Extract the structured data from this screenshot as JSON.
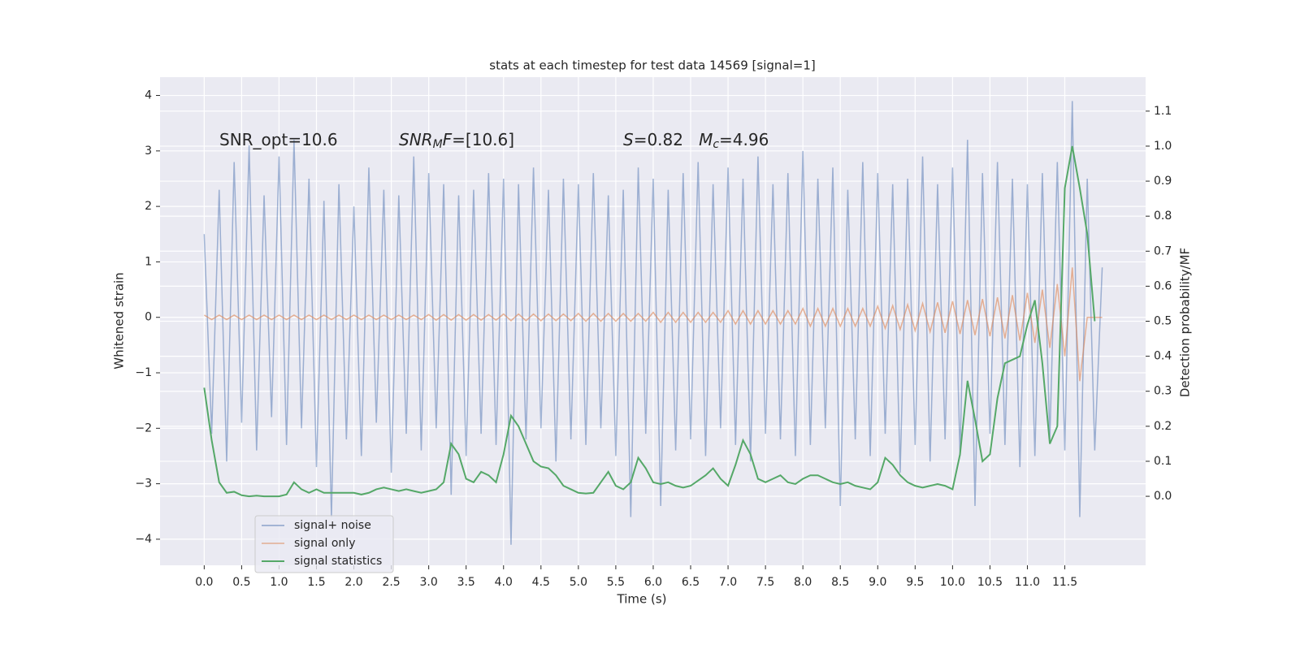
{
  "chart_data": {
    "type": "line",
    "title": "stats at each timestep for test data 14569 [signal=1]",
    "xlabel": "Time (s)",
    "ylabel": "Whitened strain",
    "y2label": "Detection probability/MF",
    "annotations": [
      [
        {
          "text": "SNR_opt=10.6"
        }
      ],
      [
        {
          "text": "SNR",
          "italic": true
        },
        {
          "text": "M",
          "italic": true,
          "sub": true
        },
        {
          "text": "F",
          "italic": true
        },
        {
          "text": "=[10.6]"
        }
      ],
      [
        {
          "text": "S",
          "italic": true
        },
        {
          "text": "=0.82   "
        },
        {
          "text": "M",
          "italic": true
        },
        {
          "text": "c",
          "italic": true,
          "sub": true
        },
        {
          "text": "=4.96"
        }
      ]
    ],
    "x": [
      0,
      0.1,
      0.2,
      0.3,
      0.4,
      0.5,
      0.6,
      0.7,
      0.8,
      0.9,
      1,
      1.1,
      1.2,
      1.3,
      1.4,
      1.5,
      1.6,
      1.7,
      1.8,
      1.9,
      2,
      2.1,
      2.2,
      2.3,
      2.4,
      2.5,
      2.6,
      2.7,
      2.8,
      2.9,
      3,
      3.1,
      3.2,
      3.3,
      3.4,
      3.5,
      3.6,
      3.7,
      3.8,
      3.9,
      4,
      4.1,
      4.2,
      4.3,
      4.4,
      4.5,
      4.6,
      4.7,
      4.8,
      4.9,
      5,
      5.1,
      5.2,
      5.3,
      5.4,
      5.5,
      5.6,
      5.7,
      5.8,
      5.9,
      6,
      6.1,
      6.2,
      6.3,
      6.4,
      6.5,
      6.6,
      6.7,
      6.8,
      6.9,
      7,
      7.1,
      7.2,
      7.3,
      7.4,
      7.5,
      7.6,
      7.7,
      7.8,
      7.9,
      8,
      8.1,
      8.2,
      8.3,
      8.4,
      8.5,
      8.6,
      8.7,
      8.8,
      8.9,
      9,
      9.1,
      9.2,
      9.3,
      9.4,
      9.5,
      9.6,
      9.7,
      9.8,
      9.9,
      10,
      10.1,
      10.2,
      10.3,
      10.4,
      10.5,
      10.6,
      10.7,
      10.8,
      10.9,
      11,
      11.1,
      11.2,
      11.3,
      11.4,
      11.5,
      11.6,
      11.7,
      11.8,
      11.9,
      12
    ],
    "series": [
      {
        "name": "signal+ noise",
        "color": "#4c72b0",
        "values": [
          1.5,
          -2.1,
          2.3,
          -2.6,
          2.8,
          -1.9,
          3.1,
          -2.4,
          2.2,
          -1.8,
          2.9,
          -2.3,
          3.2,
          -2.0,
          2.5,
          -2.7,
          2.1,
          -3.6,
          2.4,
          -2.2,
          2.0,
          -2.5,
          2.7,
          -1.9,
          2.3,
          -2.8,
          2.2,
          -2.1,
          2.9,
          -2.4,
          2.6,
          -2.0,
          2.4,
          -3.2,
          2.2,
          -2.5,
          2.3,
          -2.1,
          2.6,
          -2.3,
          2.5,
          -4.1,
          2.4,
          -2.2,
          2.7,
          -2.0,
          2.3,
          -2.6,
          2.5,
          -2.2,
          2.4,
          -2.3,
          2.6,
          -2.0,
          2.2,
          -2.5,
          2.3,
          -3.6,
          2.7,
          -2.1,
          2.5,
          -3.4,
          2.3,
          -2.4,
          2.6,
          -2.2,
          2.8,
          -2.5,
          2.4,
          -2.0,
          2.7,
          -2.3,
          2.5,
          -2.6,
          2.9,
          -2.1,
          2.4,
          -2.2,
          2.6,
          -2.5,
          3.0,
          -2.3,
          2.5,
          -2.0,
          2.7,
          -3.4,
          2.3,
          -2.2,
          2.8,
          -2.5,
          2.6,
          -2.1,
          2.4,
          -2.8,
          2.5,
          -2.3,
          2.9,
          -2.6,
          2.4,
          -2.2,
          2.7,
          -2.5,
          3.2,
          -3.4,
          2.6,
          -2.1,
          2.8,
          -2.3,
          2.5,
          -2.7,
          2.4,
          -2.5,
          2.6,
          -2.2,
          2.8,
          -2.4,
          3.9,
          -3.6,
          2.5,
          -2.4,
          0.9
        ]
      },
      {
        "name": "signal only",
        "color": "#dd8452",
        "values": [
          0.04,
          -0.04,
          0.04,
          -0.04,
          0.04,
          -0.04,
          0.04,
          -0.04,
          0.04,
          -0.04,
          0.04,
          -0.04,
          0.04,
          -0.04,
          0.04,
          -0.04,
          0.04,
          -0.04,
          0.04,
          -0.04,
          0.04,
          -0.04,
          0.04,
          -0.04,
          0.04,
          -0.04,
          0.04,
          -0.04,
          0.04,
          -0.04,
          0.05,
          -0.05,
          0.05,
          -0.05,
          0.05,
          -0.05,
          0.05,
          -0.05,
          0.05,
          -0.05,
          0.06,
          -0.06,
          0.06,
          -0.06,
          0.06,
          -0.06,
          0.06,
          -0.06,
          0.06,
          -0.06,
          0.07,
          -0.07,
          0.07,
          -0.07,
          0.07,
          -0.07,
          0.07,
          -0.07,
          0.07,
          -0.07,
          0.09,
          -0.09,
          0.09,
          -0.09,
          0.09,
          -0.09,
          0.09,
          -0.09,
          0.09,
          -0.09,
          0.12,
          -0.12,
          0.12,
          -0.12,
          0.12,
          -0.12,
          0.12,
          -0.12,
          0.12,
          -0.12,
          0.16,
          -0.16,
          0.16,
          -0.16,
          0.16,
          -0.16,
          0.16,
          -0.16,
          0.16,
          -0.16,
          0.2,
          -0.2,
          0.21,
          -0.22,
          0.23,
          -0.24,
          0.25,
          -0.26,
          0.27,
          -0.28,
          0.29,
          -0.3,
          0.31,
          -0.32,
          0.33,
          -0.34,
          0.36,
          -0.38,
          0.4,
          -0.42,
          0.44,
          -0.46,
          0.5,
          -0.55,
          0.6,
          -0.7,
          0.9,
          -1.15,
          0,
          0,
          0
        ]
      },
      {
        "name": "signal statistics",
        "color": "#55a868",
        "axis": "y2",
        "values": [
          0.31,
          0.16,
          0.04,
          0.01,
          0.013,
          0.003,
          0.0,
          0.002,
          0.0,
          0.0,
          0.0,
          0.005,
          0.04,
          0.02,
          0.01,
          0.02,
          0.01,
          0.01,
          0.01,
          0.01,
          0.01,
          0.005,
          0.01,
          0.02,
          0.025,
          0.02,
          0.015,
          0.02,
          0.015,
          0.01,
          0.015,
          0.02,
          0.04,
          0.15,
          0.12,
          0.05,
          0.04,
          0.07,
          0.06,
          0.04,
          0.12,
          0.23,
          0.2,
          0.15,
          0.1,
          0.085,
          0.08,
          0.06,
          0.03,
          0.02,
          0.01,
          0.008,
          0.01,
          0.04,
          0.07,
          0.03,
          0.02,
          0.04,
          0.11,
          0.08,
          0.04,
          0.035,
          0.04,
          0.03,
          0.025,
          0.03,
          0.045,
          0.06,
          0.08,
          0.05,
          0.03,
          0.09,
          0.16,
          0.12,
          0.05,
          0.04,
          0.05,
          0.06,
          0.04,
          0.035,
          0.05,
          0.06,
          0.06,
          0.05,
          0.04,
          0.035,
          0.04,
          0.03,
          0.025,
          0.02,
          0.04,
          0.11,
          0.09,
          0.06,
          0.04,
          0.03,
          0.025,
          0.03,
          0.035,
          0.03,
          0.02,
          0.12,
          0.33,
          0.22,
          0.1,
          0.12,
          0.28,
          0.38,
          0.39,
          0.4,
          0.49,
          0.56,
          0.38,
          0.15,
          0.2,
          0.88,
          1.0,
          0.88,
          0.75,
          0.5,
          null
        ]
      }
    ],
    "xlim": [
      -0.59,
      12.58
    ],
    "xticks": [
      {
        "value": 0,
        "label": "0.0"
      },
      0.5,
      {
        "value": 1,
        "label": "1.0"
      },
      1.5,
      {
        "value": 2,
        "label": "2.0"
      },
      2.5,
      {
        "value": 3,
        "label": "3.0"
      },
      3.5,
      {
        "value": 4,
        "label": "4.0"
      },
      4.5,
      {
        "value": 5,
        "label": "5.0"
      },
      5.5,
      {
        "value": 6,
        "label": "6.0"
      },
      6.5,
      {
        "value": 7,
        "label": "7.0"
      },
      7.5,
      {
        "value": 8,
        "label": "8.0"
      },
      8.5,
      {
        "value": 9,
        "label": "9.0"
      },
      9.5,
      {
        "value": 10,
        "label": "10.0"
      },
      10.5,
      {
        "value": 11,
        "label": "11.0"
      },
      11.5
    ],
    "ylim": [
      -4.47,
      4.33
    ],
    "yticks": [
      {
        "value": -4,
        "label": "−4"
      },
      {
        "value": -3,
        "label": "−3"
      },
      {
        "value": -2,
        "label": "−2"
      },
      {
        "value": -1,
        "label": "−1"
      },
      0,
      1,
      2,
      3,
      4
    ],
    "y2lim": [
      -0.197,
      1.197
    ],
    "y2ticks": [
      {
        "value": 0,
        "label": "0.0"
      },
      0.1,
      0.2,
      0.3,
      0.4,
      0.5,
      0.6,
      0.7,
      0.8,
      0.9,
      {
        "value": 1,
        "label": "1.0"
      },
      1.1
    ],
    "grid": true,
    "legend": "lower left"
  }
}
